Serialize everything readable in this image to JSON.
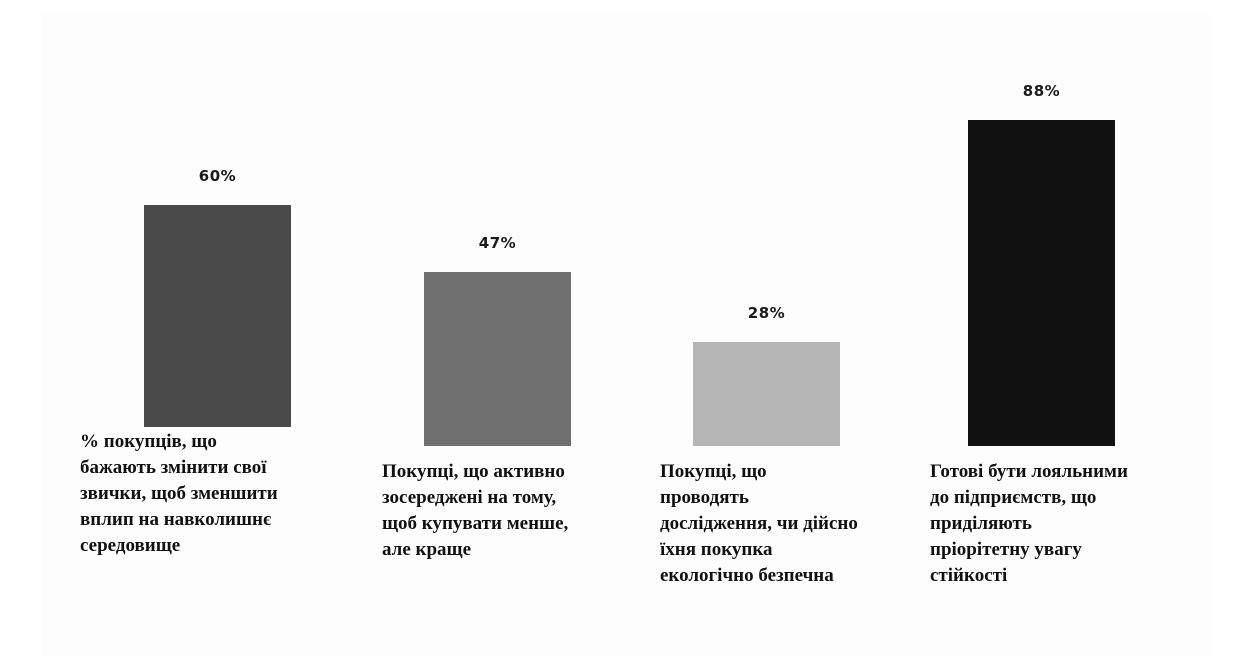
{
  "chart_data": {
    "type": "bar",
    "categories": [
      "% покупців, що бажають змінити свої звички, щоб зменшити вплип на навколишнє середовище",
      "Покупці, що активно зосереджені на тому, щоб купувати менше, але краще",
      "Покупці, що проводять дослідження, чи дійсно їхня покупка екологічно безпечна",
      "Готові бути лояльними до підприємств, що приділяють пріорітетну увагу стійкості"
    ],
    "values": [
      60,
      47,
      28,
      88
    ],
    "value_labels": [
      "60%",
      "47%",
      "28%",
      "88%"
    ],
    "bar_colors": [
      "#4a4a4a",
      "#6f6f6f",
      "#b5b5b5",
      "#111111"
    ],
    "title": "",
    "xlabel": "",
    "ylabel": "",
    "ylim": [
      0,
      100
    ],
    "grid": false,
    "legend": "none"
  }
}
